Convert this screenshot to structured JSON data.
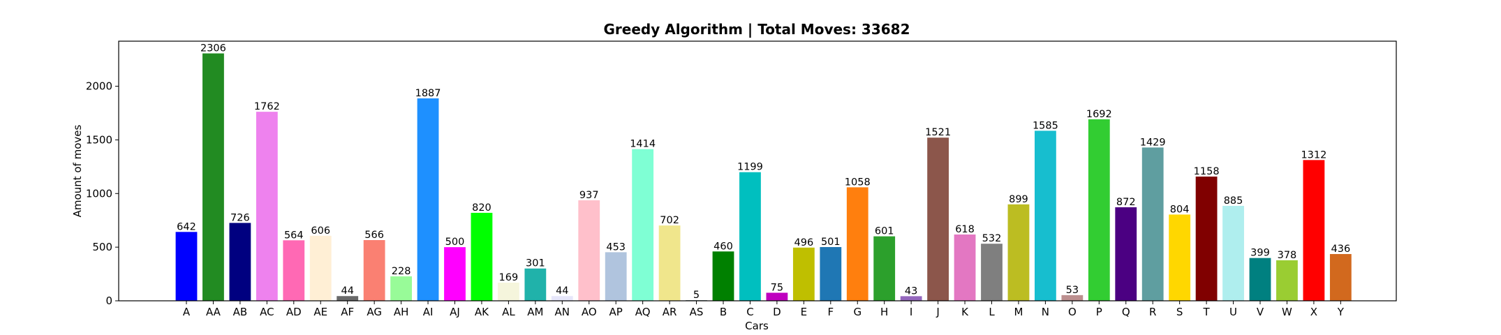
{
  "chart_data": {
    "type": "bar",
    "title": "Greedy Algorithm | Total Moves: 33682",
    "xlabel": "Cars",
    "ylabel": "Amount of moves",
    "ylim": [
      0,
      2420
    ],
    "yticks": [
      0,
      500,
      1000,
      1500,
      2000
    ],
    "grid": false,
    "legend": "none",
    "categories": [
      "A",
      "AA",
      "AB",
      "AC",
      "AD",
      "AE",
      "AF",
      "AG",
      "AH",
      "AI",
      "AJ",
      "AK",
      "AL",
      "AM",
      "AN",
      "AO",
      "AP",
      "AQ",
      "AR",
      "AS",
      "B",
      "C",
      "D",
      "E",
      "F",
      "G",
      "H",
      "I",
      "J",
      "K",
      "L",
      "M",
      "N",
      "O",
      "P",
      "Q",
      "R",
      "S",
      "T",
      "U",
      "V",
      "W",
      "X",
      "Y"
    ],
    "values": [
      642,
      2306,
      726,
      1762,
      564,
      606,
      44,
      566,
      228,
      1887,
      500,
      820,
      169,
      301,
      44,
      937,
      453,
      1414,
      702,
      5,
      460,
      1199,
      75,
      496,
      501,
      1058,
      601,
      43,
      1521,
      618,
      532,
      899,
      1585,
      53,
      1692,
      872,
      1429,
      804,
      1158,
      885,
      399,
      378,
      1312,
      436
    ],
    "colors": [
      "#0000ff",
      "#228b22",
      "#000080",
      "#ee82ee",
      "#ff69b4",
      "#ffefd5",
      "#696969",
      "#fa8072",
      "#98fb98",
      "#1e90ff",
      "#ff00ff",
      "#00ff00",
      "#f5f5dc",
      "#20b2aa",
      "#e6e6fa",
      "#ffc0cb",
      "#b0c4de",
      "#7fffd4",
      "#f0e68c",
      "#2f4f4f",
      "#008000",
      "#00bfbf",
      "#bf00bf",
      "#bfbf00",
      "#1f77b4",
      "#ff7f0e",
      "#2ca02c",
      "#9467bd",
      "#8c564b",
      "#e377c2",
      "#7f7f7f",
      "#bcbd22",
      "#17becf",
      "#bc8f8f",
      "#32cd32",
      "#4b0082",
      "#5f9ea0",
      "#ffd700",
      "#800000",
      "#afeeee",
      "#008080",
      "#9acd32",
      "#ff0000",
      "#d2691e"
    ]
  }
}
